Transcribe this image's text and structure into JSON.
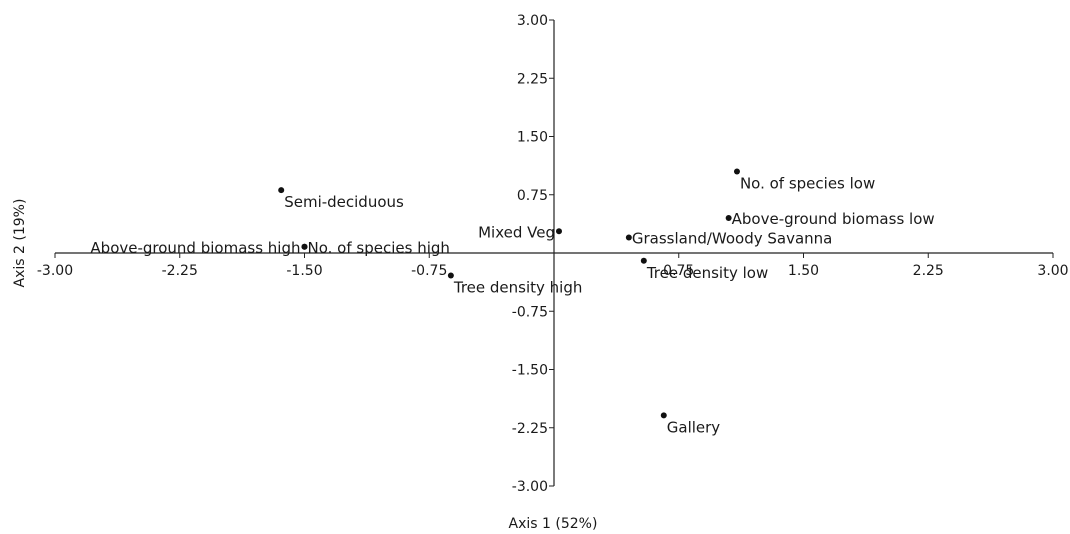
{
  "chart_data": {
    "type": "scatter",
    "xlabel": "Axis 1 (52%)",
    "ylabel": "Axis 2 (19%)",
    "xlim": [
      -3.0,
      3.0
    ],
    "ylim": [
      -3.0,
      3.0
    ],
    "x_ticks": [
      "-3.00",
      "-2.25",
      "-1.50",
      "-0.75",
      "0.75",
      "1.50",
      "2.25",
      "3.00"
    ],
    "y_ticks": [
      "3.00",
      "2.25",
      "1.50",
      "0.75",
      "-0.75",
      "-1.50",
      "-2.25",
      "-3.00"
    ],
    "grid": false,
    "points": [
      {
        "label": "Semi-deciduous",
        "x": -1.64,
        "y": 0.81,
        "label_pos": "below-right"
      },
      {
        "label": "No. of species low",
        "x": 1.1,
        "y": 1.05,
        "label_pos": "below-right"
      },
      {
        "label": "Above-ground biomass low",
        "x": 1.05,
        "y": 0.45,
        "label_pos": "right"
      },
      {
        "label": "Mixed Veg",
        "x": 0.03,
        "y": 0.28,
        "label_pos": "left"
      },
      {
        "label": "Grassland/Woody Savanna",
        "x": 0.45,
        "y": 0.2,
        "label_pos": "right"
      },
      {
        "label": "No. of species high",
        "x": -1.5,
        "y": 0.08,
        "label_pos": "right"
      },
      {
        "label": "Above-ground biomass high",
        "x": -1.5,
        "y": 0.08,
        "label_pos": "left"
      },
      {
        "label": "Tree density low",
        "x": 0.54,
        "y": -0.1,
        "label_pos": "below-right"
      },
      {
        "label": "Tree density high",
        "x": -0.62,
        "y": -0.29,
        "label_pos": "below-right"
      },
      {
        "label": "Gallery",
        "x": 0.66,
        "y": -2.09,
        "label_pos": "below-right"
      }
    ]
  }
}
